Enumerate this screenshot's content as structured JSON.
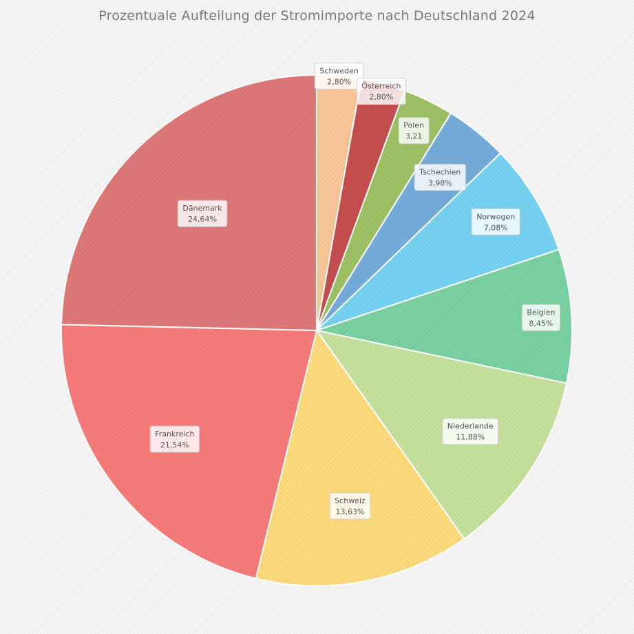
{
  "chart_data": {
    "type": "pie",
    "title": "Prozentuale Aufteilung der Stromimporte nach Deutschland 2024",
    "slices": [
      {
        "name": "Schweden",
        "value": 2.8,
        "label": "2,80%",
        "color": "#f7c596"
      },
      {
        "name": "Österreich",
        "value": 2.8,
        "label": "2,80%",
        "color": "#c44e4e"
      },
      {
        "name": "Polen",
        "value": 3.21,
        "label": "3,21",
        "color": "#9dc063"
      },
      {
        "name": "Tschechien",
        "value": 3.98,
        "label": "3,98%",
        "color": "#74acd9"
      },
      {
        "name": "Norwegen",
        "value": 7.08,
        "label": "7,08%",
        "color": "#76d1f0"
      },
      {
        "name": "Belgien",
        "value": 8.45,
        "label": "8,45%",
        "color": "#78d0a0"
      },
      {
        "name": "Niederlande",
        "value": 11.88,
        "label": "11,88%",
        "color": "#c4e09c"
      },
      {
        "name": "Schweiz",
        "value": 13.63,
        "label": "13,63%",
        "color": "#fcd97a"
      },
      {
        "name": "Frankreich",
        "value": 21.54,
        "label": "21,54%",
        "color": "#f77a7a"
      },
      {
        "name": "Dänemark",
        "value": 24.64,
        "label": "24,64%",
        "color": "#dc7878"
      }
    ]
  }
}
